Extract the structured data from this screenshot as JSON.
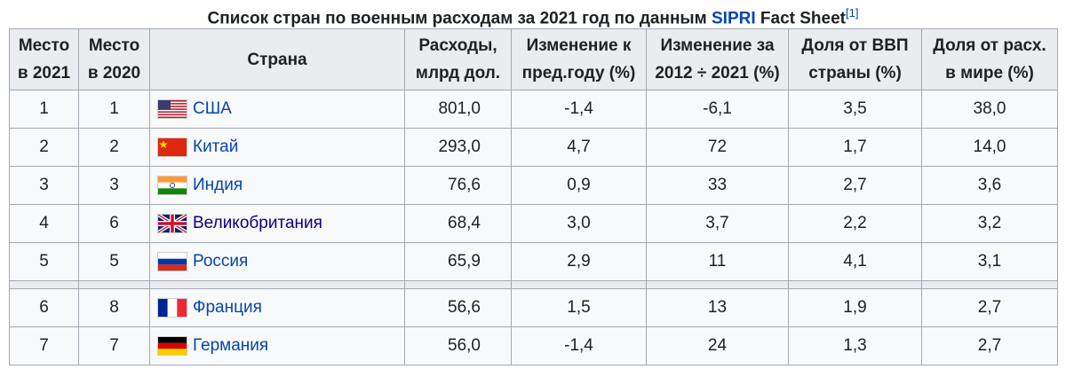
{
  "caption": {
    "text": "Список стран по военным расходам за 2021 год по данным",
    "link": "SIPRI",
    "rest": "Fact Sheet",
    "ref": "[1]"
  },
  "table": {
    "headers": [
      [
        "Место",
        "в 2021"
      ],
      [
        "Место",
        "в 2020"
      ],
      [
        "Страна"
      ],
      [
        "Расходы,",
        "млрд дол."
      ],
      [
        "Изменение к",
        "пред.году (%)"
      ],
      [
        "Изменение за",
        "2012 ÷ 2021 (%)"
      ],
      [
        "Доля от ВВП",
        "страны (%)"
      ],
      [
        "Доля от расх.",
        "в мире (%)"
      ]
    ],
    "rows": [
      [
        "1",
        "1",
        "США",
        "801,0",
        "-1,4",
        "-6,1",
        "3,5",
        "38,0"
      ],
      [
        "2",
        "2",
        "Китай",
        "293,0",
        "4,7",
        "72",
        "1,7",
        "14,0"
      ],
      [
        "3",
        "3",
        "Индия",
        "76,6",
        "0,9",
        "33",
        "2,7",
        "3,6"
      ],
      [
        "4",
        "6",
        "Великобритания",
        "68,4",
        "3,0",
        "3,7",
        "2,2",
        "3,2"
      ],
      [
        "5",
        "5",
        "Россия",
        "65,9",
        "2,9",
        "11",
        "4,1",
        "3,1"
      ],
      [
        "6",
        "8",
        "Франция",
        "56,6",
        "1,5",
        "13",
        "1,9",
        "2,7"
      ],
      [
        "7",
        "7",
        "Германия",
        "56,0",
        "-1,4",
        "24",
        "1,3",
        "2,7"
      ]
    ]
  }
}
